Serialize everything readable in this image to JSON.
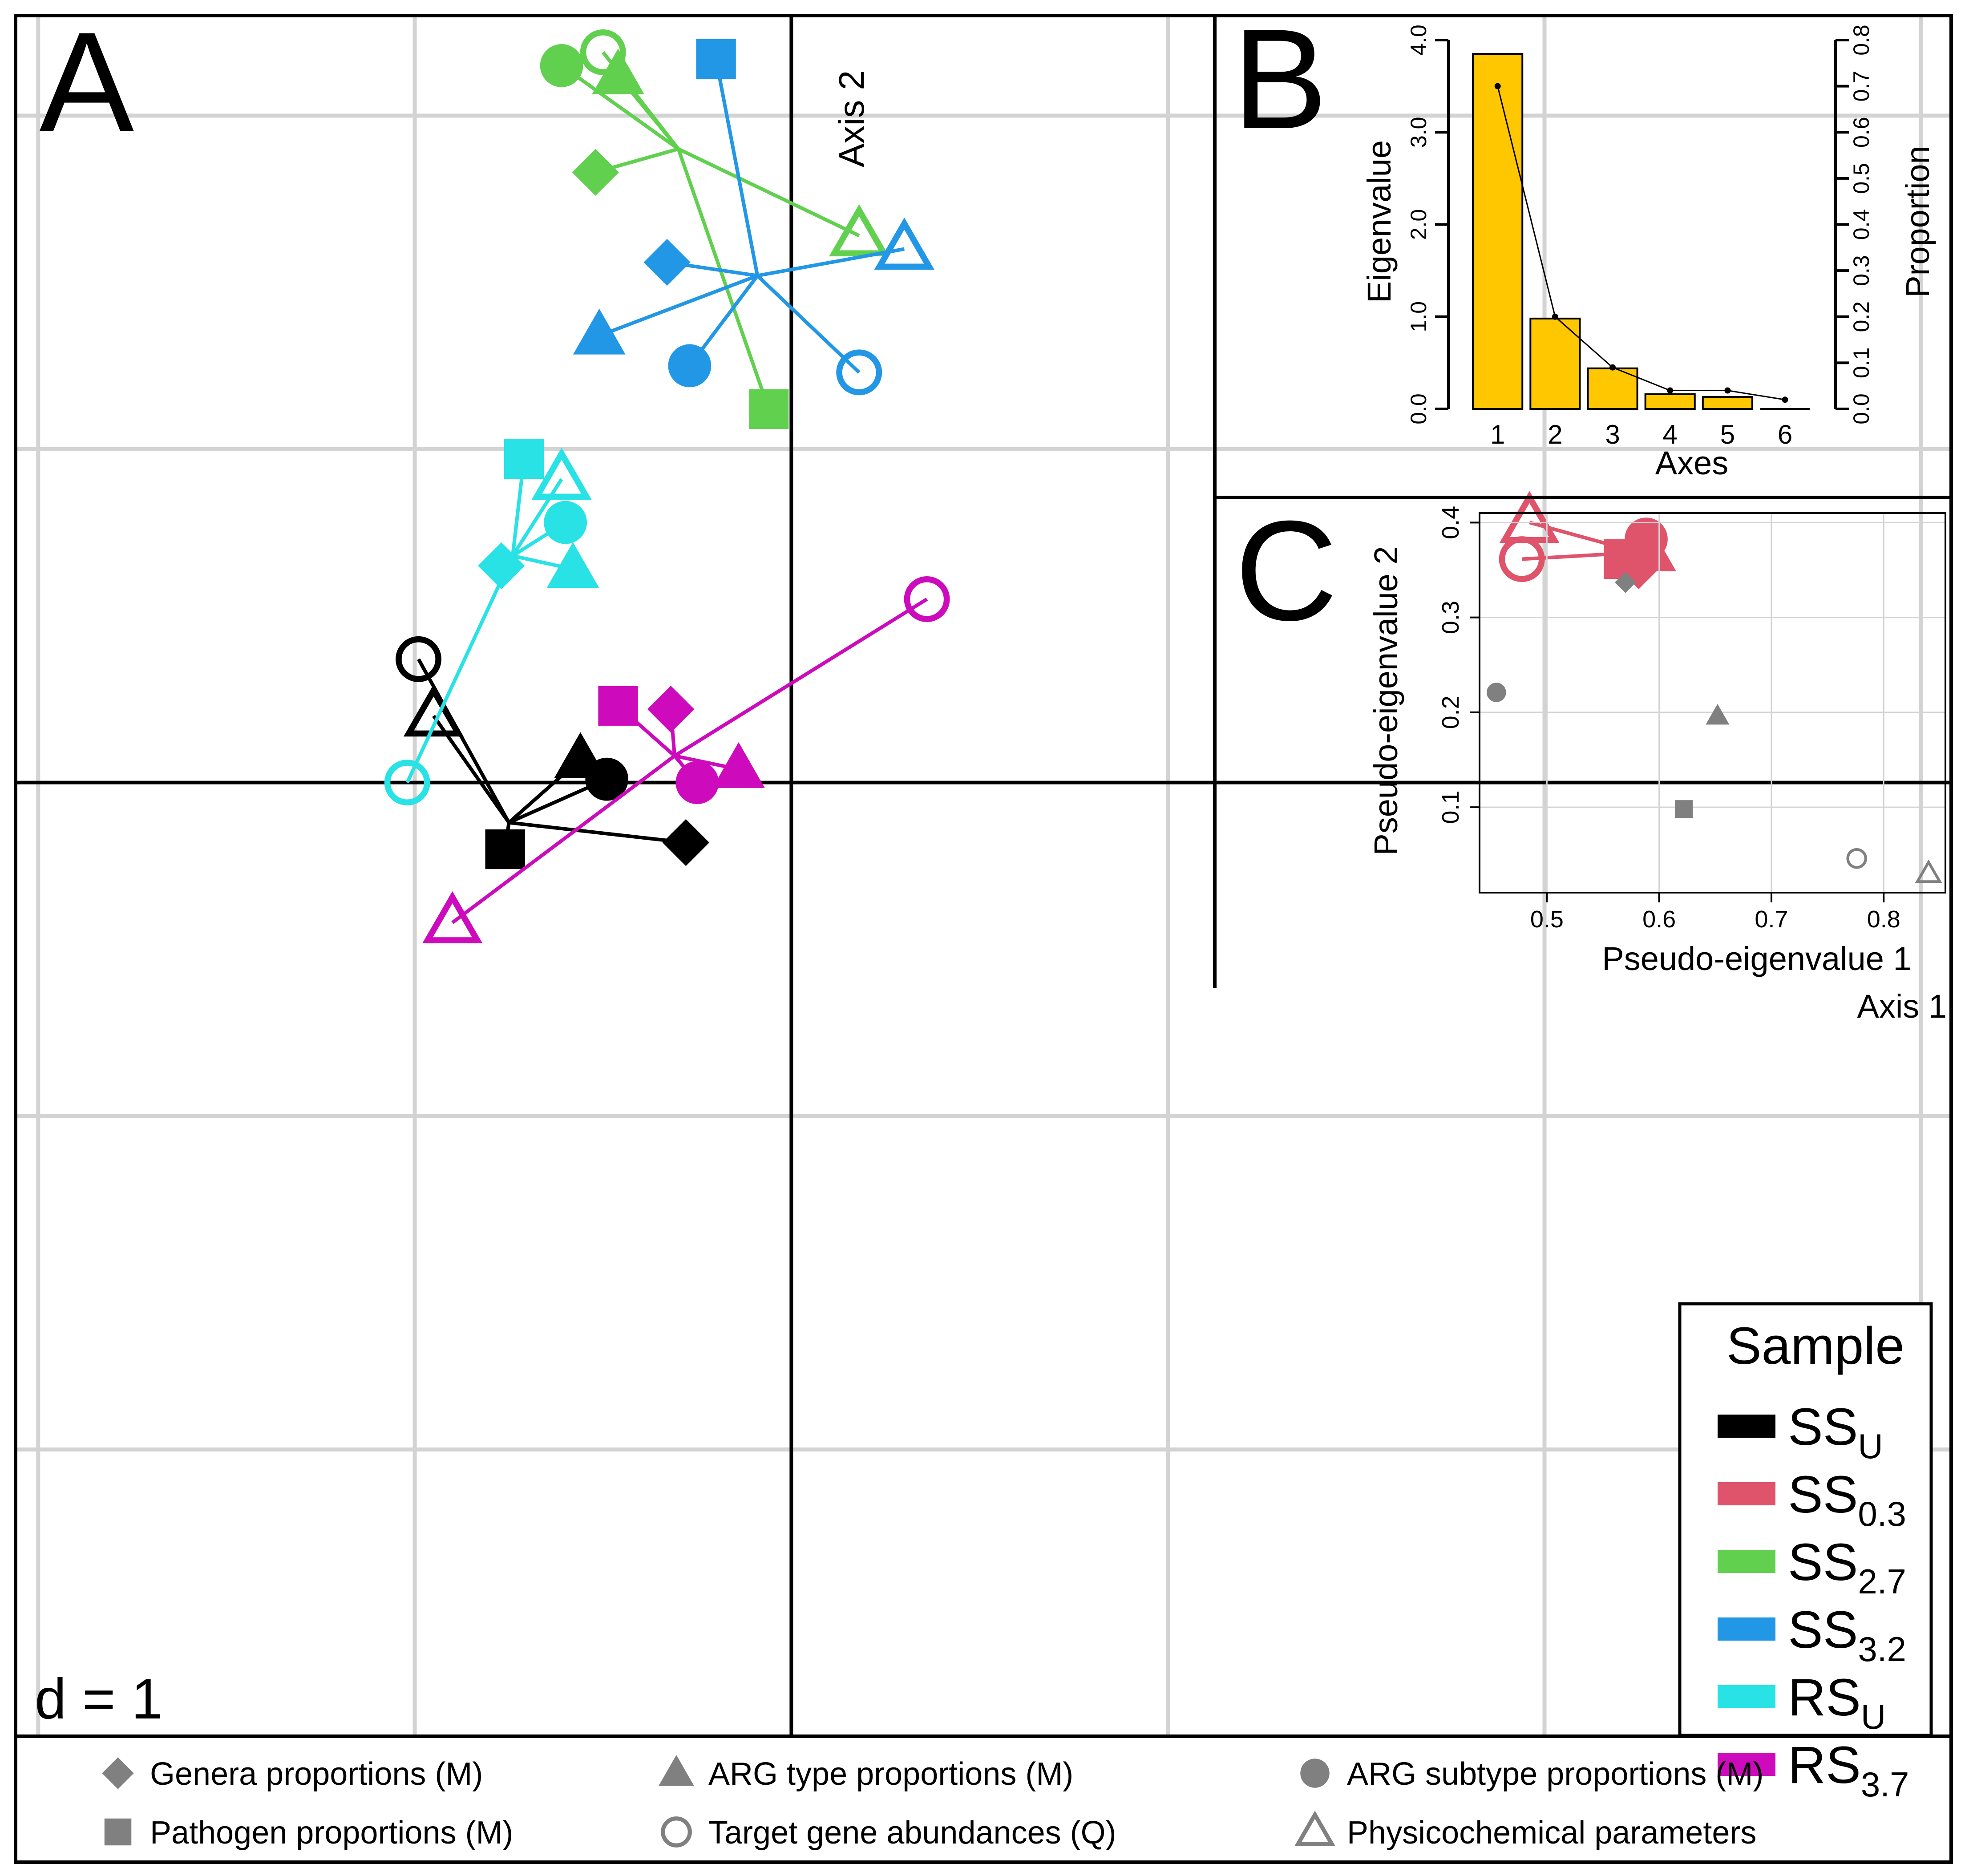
{
  "figure": {
    "panel_labels": {
      "a": "A",
      "b": "B",
      "c": "C"
    },
    "scale_label": "d = 1",
    "colors": {
      "ss_u": "#000000",
      "ss_03": "#DF536B",
      "ss_27": "#61D04F",
      "ss_32": "#2297E6",
      "rs_u": "#28E2E5",
      "rs_37": "#CD0BBC",
      "bar_fill": "#FFC700",
      "grid": "#D3D3D3",
      "gray_marker": "#808080"
    },
    "bottom_legend": [
      {
        "shape": "diamond",
        "label": "Genera proportions (M)"
      },
      {
        "shape": "triangle-filled",
        "label": "ARG type proportions (M)"
      },
      {
        "shape": "circle-filled",
        "label": "ARG subtype proportions (M)"
      },
      {
        "shape": "square",
        "label": "Pathogen proportions (M)"
      },
      {
        "shape": "circle-open",
        "label": "Target gene abundances (Q)"
      },
      {
        "shape": "triangle-open",
        "label": "Physicochemical parameters"
      }
    ]
  },
  "chart_data": [
    {
      "panel": "A",
      "type": "scatter",
      "title": "",
      "xlabel": "Axis 1",
      "ylabel": "Axis 2",
      "xlim": [
        -2.06,
        3.08
      ],
      "ylim": [
        -2.86,
        2.3
      ],
      "grid_step": 1,
      "legend_title": "Sample",
      "marker_types": [
        "diamond",
        "triangle-filled",
        "circle-filled",
        "square",
        "circle-open",
        "triangle-open"
      ],
      "series": [
        {
          "key": "ss_u",
          "label_main": "SS",
          "label_sub": "U",
          "color_key": "ss_u",
          "center": [
            -0.75,
            -0.12
          ],
          "points": {
            "diamond": [
              -0.28,
              -0.18
            ],
            "triangle-filled": [
              -0.56,
              0.07
            ],
            "circle-filled": [
              -0.49,
              0.01
            ],
            "square": [
              -0.76,
              -0.2
            ],
            "circle-open": [
              -0.99,
              0.37
            ],
            "triangle-open": [
              -0.95,
              0.2
            ]
          }
        },
        {
          "key": "ss_03",
          "label_main": "SS",
          "label_sub": "0.3",
          "color_key": "ss_03",
          "center": [
            2.25,
            0.69
          ],
          "points": {
            "diamond": [
              2.25,
              0.65
            ],
            "triangle-filled": [
              2.28,
              0.69
            ],
            "circle-filled": [
              2.27,
              0.73
            ],
            "square": [
              2.21,
              0.67
            ],
            "circle-open": [
              1.94,
              0.67
            ],
            "triangle-open": [
              1.96,
              0.78
            ]
          }
        },
        {
          "key": "ss_27",
          "label_main": "SS",
          "label_sub": "2.7",
          "color_key": "ss_27",
          "center": [
            -0.3,
            1.9
          ],
          "points": {
            "diamond": [
              -0.52,
              1.83
            ],
            "triangle-filled": [
              -0.46,
              2.12
            ],
            "circle-filled": [
              -0.61,
              2.15
            ],
            "square": [
              -0.06,
              1.12
            ],
            "circle-open": [
              -0.5,
              2.19
            ],
            "triangle-open": [
              0.18,
              1.64
            ]
          }
        },
        {
          "key": "ss_32",
          "label_main": "SS",
          "label_sub": "3.2",
          "color_key": "ss_32",
          "center": [
            -0.09,
            1.52
          ],
          "points": {
            "diamond": [
              -0.33,
              1.56
            ],
            "triangle-filled": [
              -0.51,
              1.34
            ],
            "circle-filled": [
              -0.27,
              1.25
            ],
            "square": [
              -0.2,
              2.17
            ],
            "circle-open": [
              0.18,
              1.23
            ],
            "triangle-open": [
              0.3,
              1.6
            ]
          }
        },
        {
          "key": "rs_u",
          "label_main": "RS",
          "label_sub": "U",
          "color_key": "rs_u",
          "center": [
            -0.74,
            0.68
          ],
          "points": {
            "diamond": [
              -0.77,
              0.65
            ],
            "triangle-filled": [
              -0.58,
              0.64
            ],
            "circle-filled": [
              -0.6,
              0.78
            ],
            "square": [
              -0.71,
              0.97
            ],
            "circle-open": [
              -1.02,
              0.0
            ],
            "triangle-open": [
              -0.61,
              0.91
            ]
          }
        },
        {
          "key": "rs_37",
          "label_main": "RS",
          "label_sub": "3.7",
          "color_key": "rs_37",
          "center": [
            -0.31,
            0.08
          ],
          "points": {
            "diamond": [
              -0.32,
              0.22
            ],
            "triangle-filled": [
              -0.14,
              0.04
            ],
            "circle-filled": [
              -0.25,
              0.0
            ],
            "square": [
              -0.46,
              0.23
            ],
            "circle-open": [
              0.36,
              0.55
            ],
            "triangle-open": [
              -0.9,
              -0.42
            ]
          }
        }
      ]
    },
    {
      "panel": "B",
      "type": "bar",
      "title": "",
      "xlabel": "Axes",
      "ylabel": "Eigenvalue",
      "y2label": "Proportion",
      "categories": [
        "1",
        "2",
        "3",
        "4",
        "5",
        "6"
      ],
      "values": [
        3.85,
        0.98,
        0.44,
        0.16,
        0.13,
        0.0
      ],
      "proportions": [
        0.7,
        0.2,
        0.09,
        0.04,
        0.04,
        0.02
      ],
      "ylim": [
        0,
        4
      ],
      "y_ticks": [
        "0.0",
        "1.0",
        "2.0",
        "3.0",
        "4.0"
      ],
      "y2lim": [
        0,
        0.8
      ],
      "y2_ticks": [
        "0.0",
        "0.1",
        "0.2",
        "0.3",
        "0.4",
        "0.5",
        "0.6",
        "0.7",
        "0.8"
      ]
    },
    {
      "panel": "C",
      "type": "scatter",
      "title": "",
      "xlabel": "Pseudo-eigenvalue 1",
      "ylabel": "Pseudo-eigenvalue 2",
      "xlim": [
        0.44,
        0.855
      ],
      "ylim": [
        0.01,
        0.41
      ],
      "x_ticks": [
        "0.5",
        "0.6",
        "0.7",
        "0.8"
      ],
      "y_ticks": [
        "0.1",
        "0.2",
        "0.3",
        "0.4"
      ],
      "points": [
        {
          "shape": "diamond",
          "x": 0.57,
          "y": 0.337
        },
        {
          "shape": "circle-filled",
          "x": 0.455,
          "y": 0.221
        },
        {
          "shape": "triangle-filled",
          "x": 0.652,
          "y": 0.196
        },
        {
          "shape": "square",
          "x": 0.622,
          "y": 0.098
        },
        {
          "shape": "circle-open",
          "x": 0.776,
          "y": 0.046
        },
        {
          "shape": "triangle-open",
          "x": 0.84,
          "y": 0.03
        }
      ]
    }
  ]
}
